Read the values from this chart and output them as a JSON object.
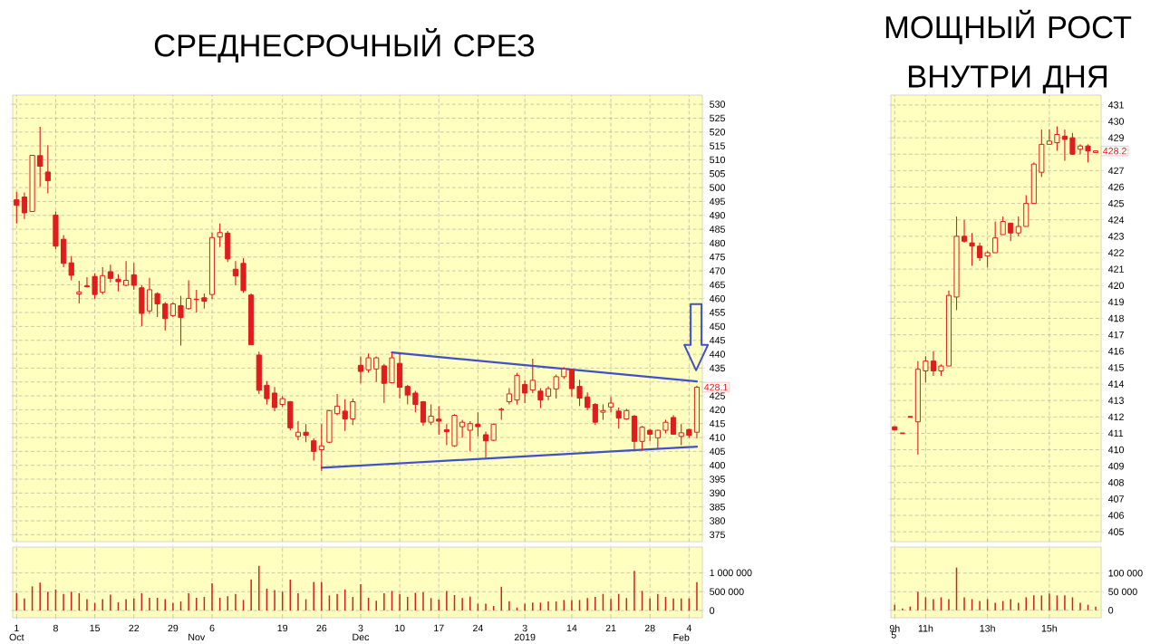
{
  "chart_data": [
    {
      "type": "candlestick",
      "title": "СРЕДНЕСРОЧНЫЙ СРЕЗ",
      "color": "#e01c1c",
      "grid": true,
      "categories": [
        "Oct",
        null,
        null,
        null,
        null,
        null,
        null,
        null,
        null,
        null,
        null,
        null,
        null,
        null,
        null,
        null,
        null,
        null,
        null,
        null,
        null,
        null,
        null,
        "Nov",
        null,
        null,
        null,
        null,
        null,
        null,
        null,
        null,
        null,
        null,
        null,
        null,
        null,
        null,
        null,
        null,
        null,
        null,
        null,
        null,
        "Dec",
        null,
        null,
        null,
        null,
        null,
        null,
        null,
        null,
        null,
        null,
        null,
        null,
        null,
        null,
        null,
        null,
        null,
        null,
        null,
        null,
        "2019",
        null,
        null,
        null,
        null,
        null,
        null,
        null,
        null,
        null,
        null,
        null,
        null,
        null,
        null,
        null,
        null,
        null,
        null,
        null,
        "Feb",
        null,
        null
      ],
      "ohlc": [
        [
          495.6,
          498.5,
          487.1,
          493.6
        ],
        [
          496.6,
          498.2,
          488.7,
          490.9
        ],
        [
          491.4,
          511.6,
          491.4,
          511.6
        ],
        [
          511.5,
          521.9,
          500.3,
          507.7
        ],
        [
          505.6,
          515.3,
          497.9,
          502.5
        ],
        [
          490.1,
          491.4,
          477.8,
          478.9
        ],
        [
          481.4,
          482.9,
          471.3,
          472.7
        ],
        [
          472.9,
          475.3,
          466.6,
          468.4
        ],
        [
          461.7,
          466.4,
          458.3,
          462.4
        ],
        [
          464.6,
          467.7,
          464.0,
          464.3
        ],
        [
          468.0,
          469.1,
          459.9,
          461.5
        ],
        [
          462.3,
          471.3,
          461.5,
          468.3
        ],
        [
          469.7,
          472.2,
          465.9,
          467.3
        ],
        [
          467.0,
          468.8,
          462.6,
          466.1
        ],
        [
          464.8,
          473.5,
          464.5,
          466.6
        ],
        [
          468.6,
          472.9,
          463.2,
          464.8
        ],
        [
          463.9,
          464.8,
          450.1,
          454.7
        ],
        [
          455.6,
          467.5,
          454.5,
          463.2
        ],
        [
          461.8,
          462.3,
          453.4,
          458.1
        ],
        [
          458.1,
          458.8,
          448.5,
          452.8
        ],
        [
          453.9,
          458.8,
          453.4,
          458.1
        ],
        [
          457.5,
          461.0,
          443.1,
          453.2
        ],
        [
          456.4,
          466.6,
          456.1,
          460.1
        ],
        [
          459.7,
          463.2,
          455.0,
          459.8
        ],
        [
          460.3,
          461.9,
          456.4,
          459.1
        ],
        [
          461.5,
          483.8,
          459.9,
          482.0
        ],
        [
          482.2,
          487.1,
          478.6,
          483.8
        ],
        [
          483.6,
          484.4,
          473.2,
          474.3
        ],
        [
          470.6,
          473.5,
          464.8,
          468.2
        ],
        [
          472.7,
          474.6,
          462.1,
          462.9
        ],
        [
          461.3,
          461.9,
          443.4,
          443.4
        ],
        [
          439.7,
          440.9,
          425.7,
          427.0
        ],
        [
          428.8,
          430.3,
          421.9,
          424.0
        ],
        [
          426.0,
          428.2,
          419.5,
          420.8
        ],
        [
          421.9,
          424.9,
          421.0,
          424.0
        ],
        [
          422.9,
          423.1,
          412.6,
          413.5
        ],
        [
          410.4,
          415.9,
          409.0,
          411.9
        ],
        [
          411.9,
          414.8,
          408.3,
          410.8
        ],
        [
          408.8,
          409.7,
          401.7,
          405.0
        ],
        [
          405.6,
          414.8,
          397.9,
          407.0
        ],
        [
          408.3,
          419.9,
          408.0,
          419.7
        ],
        [
          418.6,
          425.7,
          418.0,
          421.3
        ],
        [
          419.5,
          423.8,
          412.4,
          416.7
        ],
        [
          416.7,
          424.0,
          414.5,
          422.9
        ],
        [
          436.0,
          439.2,
          429.5,
          433.8
        ],
        [
          434.4,
          440.3,
          433.3,
          438.7
        ],
        [
          434.7,
          439.2,
          430.0,
          438.7
        ],
        [
          435.8,
          436.5,
          422.4,
          429.5
        ],
        [
          429.7,
          440.6,
          429.5,
          438.7
        ],
        [
          436.7,
          440.3,
          424.0,
          428.1
        ],
        [
          428.4,
          428.9,
          421.9,
          425.3
        ],
        [
          426.0,
          426.8,
          419.1,
          421.9
        ],
        [
          422.9,
          423.1,
          414.2,
          415.5
        ],
        [
          415.5,
          421.9,
          414.5,
          417.7
        ],
        [
          416.6,
          421.3,
          411.0,
          415.9
        ],
        [
          412.8,
          414.8,
          407.2,
          412.1
        ],
        [
          407.0,
          418.4,
          406.6,
          418.0
        ],
        [
          413.9,
          416.4,
          409.9,
          415.5
        ],
        [
          412.6,
          415.9,
          405.0,
          415.0
        ],
        [
          414.8,
          419.1,
          410.4,
          413.9
        ],
        [
          411.0,
          412.1,
          402.8,
          408.8
        ],
        [
          409.0,
          415.1,
          408.8,
          414.8
        ],
        [
          419.9,
          420.8,
          416.4,
          420.2
        ],
        [
          422.9,
          427.8,
          421.9,
          425.7
        ],
        [
          423.5,
          433.3,
          421.9,
          432.4
        ],
        [
          429.1,
          430.6,
          422.4,
          426.0
        ],
        [
          427.1,
          438.4,
          426.0,
          430.6
        ],
        [
          426.7,
          427.8,
          420.6,
          423.5
        ],
        [
          424.9,
          428.4,
          423.5,
          427.6
        ],
        [
          427.5,
          432.7,
          424.0,
          431.9
        ],
        [
          431.9,
          435.4,
          431.1,
          434.7
        ],
        [
          434.4,
          434.7,
          424.6,
          427.6
        ],
        [
          428.4,
          430.8,
          421.3,
          424.2
        ],
        [
          424.6,
          426.2,
          419.9,
          420.8
        ],
        [
          421.9,
          422.4,
          414.5,
          415.5
        ],
        [
          419.1,
          421.9,
          416.4,
          419.7
        ],
        [
          421.0,
          424.6,
          419.1,
          422.4
        ],
        [
          419.5,
          420.8,
          413.2,
          417.0
        ],
        [
          416.7,
          420.4,
          416.4,
          419.7
        ],
        [
          417.7,
          418.1,
          405.6,
          408.6
        ],
        [
          408.6,
          414.2,
          405.3,
          413.7
        ],
        [
          412.6,
          413.2,
          408.6,
          411.2
        ],
        [
          409.9,
          412.8,
          406.1,
          412.6
        ],
        [
          412.6,
          416.4,
          411.5,
          415.5
        ],
        [
          417.2,
          418.1,
          411.0,
          411.2
        ],
        [
          410.4,
          414.8,
          407.2,
          411.7
        ],
        [
          412.9,
          413.2,
          409.9,
          410.8
        ],
        [
          411.9,
          428.7,
          409.7,
          428.1
        ]
      ],
      "series": [
        {
          "type": "line",
          "color": "#4150c8",
          "values": [
            null,
            null,
            null,
            null,
            null,
            null,
            null,
            null,
            null,
            null,
            null,
            null,
            null,
            null,
            null,
            null,
            null,
            null,
            null,
            null,
            null,
            null,
            null,
            null,
            null,
            null,
            null,
            null,
            null,
            null,
            null,
            null,
            null,
            null,
            null,
            null,
            null,
            null,
            null,
            null,
            null,
            null,
            null,
            null,
            null,
            null,
            null,
            null,
            440.6,
            null,
            null,
            null,
            null,
            null,
            null,
            null,
            null,
            null,
            null,
            null,
            null,
            null,
            null,
            null,
            null,
            null,
            null,
            null,
            null,
            null,
            null,
            null,
            null,
            null,
            null,
            null,
            null,
            null,
            null,
            null,
            null,
            null,
            null,
            null,
            null,
            null,
            null,
            430.2
          ]
        },
        {
          "type": "line",
          "color": "#4150c8",
          "values": [
            null,
            null,
            null,
            null,
            null,
            null,
            null,
            null,
            null,
            null,
            null,
            null,
            null,
            null,
            null,
            null,
            null,
            null,
            null,
            null,
            null,
            null,
            null,
            null,
            null,
            null,
            null,
            null,
            null,
            null,
            null,
            null,
            null,
            null,
            null,
            null,
            null,
            null,
            null,
            399.1,
            null,
            null,
            null,
            null,
            null,
            null,
            null,
            null,
            null,
            null,
            null,
            null,
            null,
            null,
            null,
            null,
            null,
            null,
            null,
            null,
            null,
            null,
            null,
            null,
            null,
            null,
            null,
            null,
            null,
            null,
            null,
            null,
            null,
            null,
            null,
            null,
            null,
            null,
            null,
            null,
            null,
            null,
            null,
            null,
            null,
            null,
            null,
            406.7
          ]
        }
      ],
      "annotations": [
        {
          "text": "428.1",
          "y": 428.1
        }
      ],
      "ylim": [
        372.5,
        533.3
      ],
      "yticks": [
        375,
        380,
        385,
        390,
        395,
        400,
        405,
        410,
        415,
        420,
        425,
        {
          "value": 430,
          "label": null
        },
        435,
        440,
        445,
        450,
        455,
        460,
        465,
        470,
        475,
        480,
        485,
        490,
        495,
        500,
        505,
        510,
        515,
        520,
        525,
        530
      ]
    },
    {
      "type": "bar",
      "color": "#d42020",
      "grid": true,
      "categories": [
        "1",
        null,
        null,
        null,
        null,
        "8",
        null,
        null,
        null,
        null,
        "15",
        null,
        null,
        null,
        null,
        "22",
        null,
        null,
        null,
        null,
        "29",
        null,
        null,
        null,
        null,
        "6",
        null,
        null,
        null,
        null,
        null,
        null,
        null,
        null,
        "19",
        null,
        null,
        null,
        null,
        "26",
        null,
        null,
        null,
        null,
        "3",
        null,
        null,
        null,
        null,
        "10",
        null,
        null,
        null,
        null,
        "17",
        null,
        null,
        null,
        null,
        "24",
        null,
        null,
        null,
        null,
        null,
        "3",
        null,
        null,
        null,
        null,
        null,
        "14",
        null,
        null,
        null,
        null,
        "21",
        null,
        null,
        null,
        null,
        "28",
        null,
        null,
        null,
        null,
        "4",
        null
      ],
      "values": [
        460000,
        320000,
        640000,
        740000,
        500000,
        560000,
        440000,
        500000,
        460000,
        300000,
        200000,
        300000,
        420000,
        220000,
        300000,
        320000,
        460000,
        340000,
        340000,
        300000,
        200000,
        240000,
        460000,
        340000,
        360000,
        720000,
        340000,
        380000,
        440000,
        280000,
        820000,
        1180000,
        580000,
        540000,
        500000,
        820000,
        460000,
        300000,
        760000,
        760000,
        400000,
        440000,
        560000,
        360000,
        700000,
        340000,
        260000,
        460000,
        520000,
        440000,
        360000,
        470000,
        490000,
        330000,
        290000,
        520000,
        410000,
        330000,
        370000,
        180000,
        180000,
        120000,
        630000,
        250000,
        80000,
        180000,
        210000,
        210000,
        240000,
        240000,
        280000,
        280000,
        280000,
        330000,
        360000,
        440000,
        310000,
        440000,
        330000,
        1050000,
        520000,
        320000,
        440000,
        360000,
        320000,
        320000,
        320000,
        750000
      ],
      "ylim": [
        -190000,
        1680000
      ],
      "yticks": [
        0,
        {
          "value": 500000,
          "label": "500 000"
        },
        {
          "value": 1000000,
          "label": "1 000 000"
        }
      ]
    },
    {
      "type": "candlestick",
      "title": "МОЩНЫЙ РОСТ ВНУТРИ ДНЯ",
      "color": "#e01c1c",
      "grid": true,
      "categories": [
        null,
        null,
        null,
        null,
        null,
        null,
        null,
        null,
        null,
        null,
        null,
        null,
        null,
        null,
        null,
        null,
        null,
        null,
        null,
        null,
        null,
        null,
        null,
        null,
        null,
        null,
        null
      ],
      "ohlc": [
        [
          411.4,
          411.4,
          411.2,
          411.2
        ],
        [
          411.0,
          411.0,
          411.0,
          411.0
        ],
        [
          412.0,
          412.0,
          412.0,
          412.0
        ],
        [
          411.7,
          415.4,
          409.7,
          414.9
        ],
        [
          414.8,
          415.7,
          414.1,
          415.4
        ],
        [
          415.4,
          416.0,
          414.5,
          414.8
        ],
        [
          414.8,
          415.2,
          414.5,
          415.1
        ],
        [
          415.1,
          419.7,
          415.1,
          419.4
        ],
        [
          419.3,
          424.2,
          418.5,
          423.0
        ],
        [
          423.0,
          424.0,
          422.6,
          422.7
        ],
        [
          422.6,
          423.2,
          421.2,
          422.4
        ],
        [
          422.4,
          422.6,
          421.5,
          421.7
        ],
        [
          421.8,
          422.1,
          421.1,
          422.0
        ],
        [
          422.0,
          423.9,
          422.0,
          422.9
        ],
        [
          423.1,
          424.2,
          423.1,
          423.9
        ],
        [
          423.8,
          423.8,
          422.7,
          423.2
        ],
        [
          423.2,
          424.2,
          423.0,
          423.6
        ],
        [
          423.6,
          425.5,
          423.6,
          425.0
        ],
        [
          425.0,
          427.5,
          425.0,
          427.4
        ],
        [
          426.9,
          429.5,
          426.6,
          428.6
        ],
        [
          428.6,
          429.5,
          428.6,
          428.8
        ],
        [
          428.7,
          429.7,
          428.2,
          429.2
        ],
        [
          429.1,
          429.5,
          427.6,
          428.9
        ],
        [
          429.0,
          429.3,
          428.0,
          428.0
        ],
        [
          428.3,
          428.6,
          428.0,
          428.5
        ],
        [
          428.5,
          428.6,
          427.5,
          428.2
        ],
        [
          428.1,
          428.2,
          428.1,
          428.2
        ]
      ],
      "annotations": [
        {
          "text": "428.2",
          "y": 428.2
        },
        "5"
      ],
      "ylim": [
        404.4,
        431.6
      ],
      "yticks": [
        405,
        406,
        407,
        408,
        409,
        410,
        411,
        412,
        413,
        414,
        415,
        416,
        417,
        418,
        419,
        420,
        421,
        422,
        423,
        424,
        425,
        426,
        427,
        {
          "value": 428,
          "label": null
        },
        429,
        430,
        431
      ]
    },
    {
      "type": "bar",
      "color": "#d42020",
      "grid": true,
      "categories": [
        "9h",
        null,
        null,
        null,
        "11h",
        null,
        null,
        null,
        null,
        null,
        null,
        null,
        "13h",
        null,
        null,
        null,
        null,
        null,
        null,
        null,
        "15h",
        null,
        null,
        null,
        null,
        null,
        null
      ],
      "values": [
        15000,
        5000,
        10000,
        50000,
        35000,
        30000,
        35000,
        30000,
        115000,
        35000,
        30000,
        25000,
        30000,
        20000,
        25000,
        30000,
        20000,
        35000,
        40000,
        40000,
        45000,
        40000,
        40000,
        35000,
        20000,
        15000,
        10000
      ],
      "ylim": [
        -20000,
        170000
      ],
      "yticks": [
        0,
        {
          "value": 50000,
          "label": "50 000"
        },
        {
          "value": 100000,
          "label": "100 000"
        }
      ]
    }
  ]
}
